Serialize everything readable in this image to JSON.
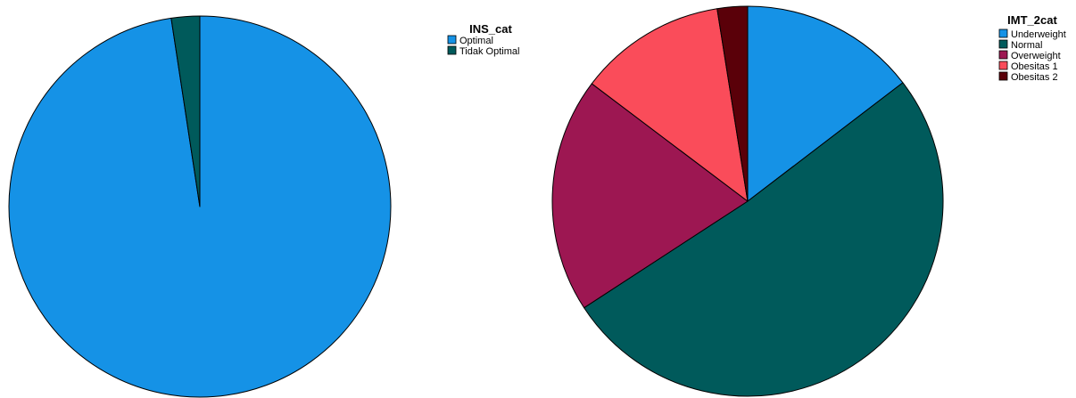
{
  "chart_data": [
    {
      "type": "pie",
      "legend_title": "INS_cat",
      "legend_position": "top-right",
      "slices": [
        {
          "label": "Optimal",
          "value": 97.6,
          "color": "#1592E6"
        },
        {
          "label": "Tidak Optimal",
          "value": 2.4,
          "color": "#005A5B"
        }
      ]
    },
    {
      "type": "pie",
      "legend_title": "IMT_2cat",
      "legend_position": "top-right",
      "slices": [
        {
          "label": "Underweight",
          "value": 14.6,
          "color": "#1592E6"
        },
        {
          "label": "Normal",
          "value": 51.2,
          "color": "#005A5B"
        },
        {
          "label": "Overweight",
          "value": 19.5,
          "color": "#9D1752"
        },
        {
          "label": "Obesitas 1",
          "value": 12.2,
          "color": "#FA4C5A"
        },
        {
          "label": "Obesitas 2",
          "value": 2.5,
          "color": "#5A0009"
        }
      ]
    }
  ]
}
